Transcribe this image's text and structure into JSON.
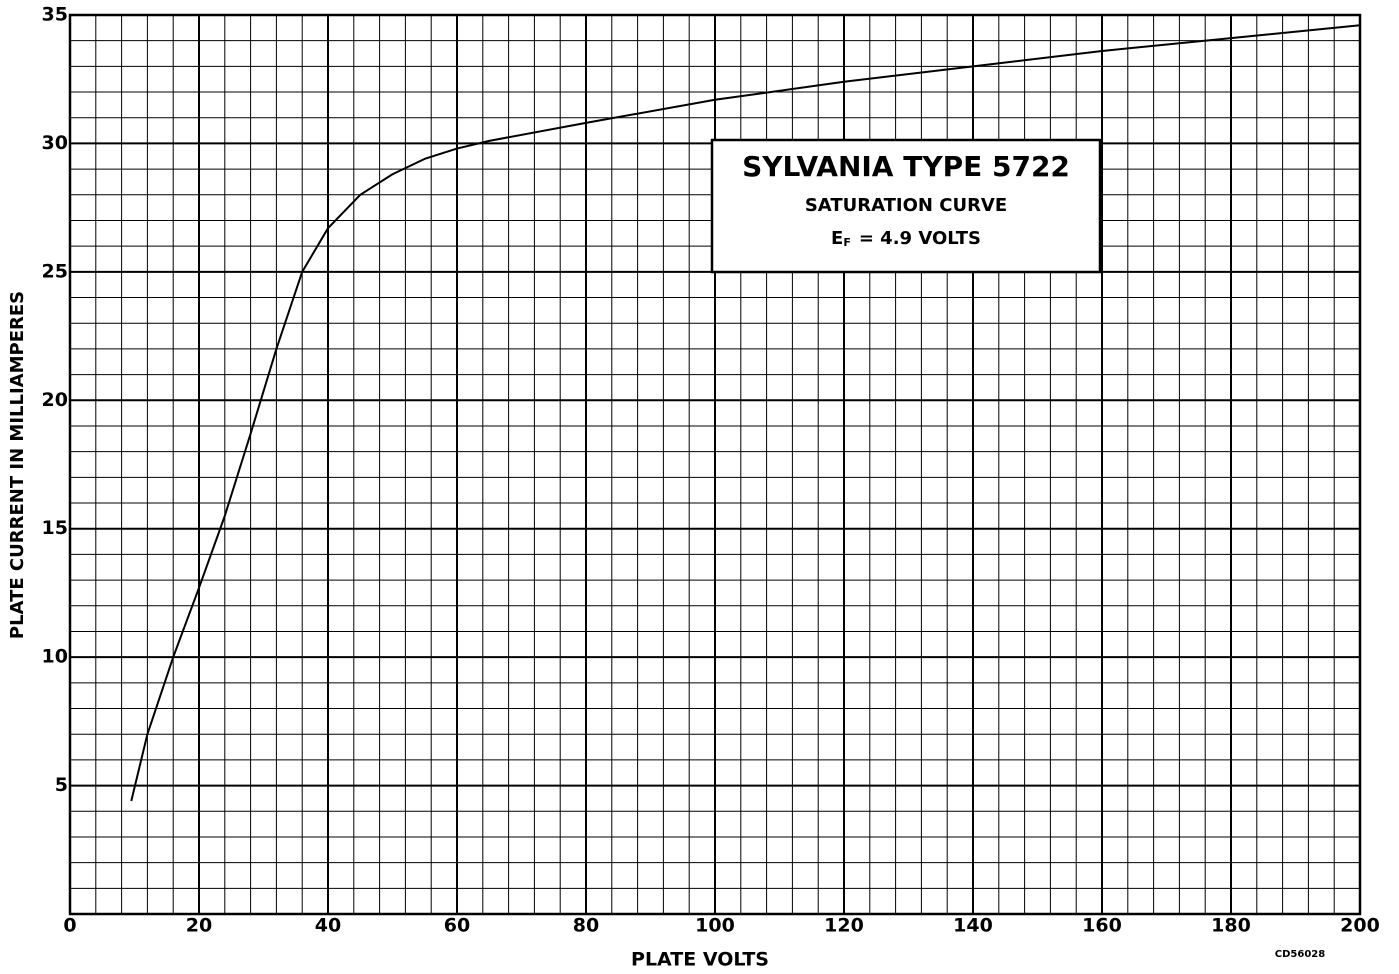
{
  "chart_data": {
    "type": "line",
    "xlabel": "PLATE VOLTS",
    "ylabel": "PLATE CURRENT IN MILLIAMPERES",
    "annotation": {
      "lines": [
        "SYLVANIA TYPE 5722",
        "SATURATION CURVE"
      ],
      "formula": [
        "E",
        "F",
        "= 4.9 VOLTS"
      ]
    },
    "code": "CD56028",
    "x": [
      9.5,
      12,
      16,
      20,
      24,
      28,
      32,
      36,
      40,
      45,
      50,
      55,
      60,
      65,
      80,
      100,
      120,
      140,
      160,
      180,
      200
    ],
    "series": [
      {
        "name": "Saturation curve",
        "color": "#000000",
        "values": [
          4.4,
          7,
          10,
          12.7,
          15.5,
          18.7,
          22,
          25,
          26.7,
          28,
          28.8,
          29.4,
          29.8,
          30.1,
          30.8,
          31.7,
          32.4,
          33,
          33.6,
          34.1,
          34.6
        ]
      }
    ],
    "xlim": [
      0,
      200
    ],
    "xticks": [
      0,
      20,
      40,
      60,
      80,
      100,
      120,
      140,
      160,
      180,
      200
    ],
    "ylim": [
      0,
      35
    ],
    "yticks": [
      5,
      10,
      15,
      20,
      25,
      30,
      35
    ],
    "grid": true
  }
}
